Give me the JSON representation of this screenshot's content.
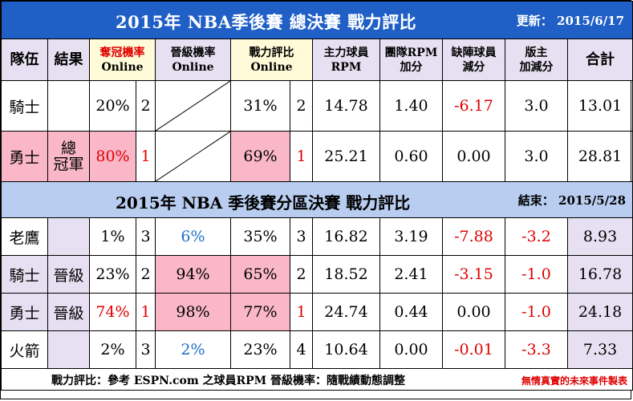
{
  "title1": {
    "text": "2015年 NBA季後賽  總決賽  戰力評比",
    "update_label": "更新：",
    "update_date": "2015/6/17"
  },
  "headers": {
    "team": "隊伍",
    "result": "結果",
    "champ_l1": "奪冠機率",
    "champ_l2": "Online",
    "adv_l1": "晉級機率",
    "adv_l2": "Online",
    "power_l1": "戰力評比",
    "power_l2": "Online",
    "main_l1": "主力球員",
    "main_l2": "RPM",
    "team_l1": "團隊RPM",
    "team_l2": "加分",
    "miss_l1": "缺陣球員",
    "miss_l2": "減分",
    "owner_l1": "版主",
    "owner_l2": "加減分",
    "total": "合計"
  },
  "finals": [
    {
      "team": "騎士",
      "result": "",
      "champ_pct": "20%",
      "champ_rank": "2",
      "power_pct": "31%",
      "power_rank": "2",
      "main_rpm": "14.78",
      "team_rpm": "1.40",
      "missing": "-6.17",
      "owner": "3.0",
      "total": "13.01"
    },
    {
      "team": "勇士",
      "result_l1": "總",
      "result_l2": "冠軍",
      "champ_pct": "80%",
      "champ_rank": "1",
      "power_pct": "69%",
      "power_rank": "1",
      "main_rpm": "25.21",
      "team_rpm": "0.60",
      "missing": "0.00",
      "owner": "3.0",
      "total": "28.81"
    }
  ],
  "title2": {
    "text": "2015年 NBA 季後賽分區決賽    戰力評比",
    "end_label": "結束：",
    "end_date": "2015/5/28"
  },
  "conf": [
    {
      "team": "老鷹",
      "result": "",
      "champ_pct": "1%",
      "champ_rank": "3",
      "adv_pct": "6%",
      "power_pct": "35%",
      "power_rank": "3",
      "main_rpm": "16.82",
      "team_rpm": "3.19",
      "missing": "-7.88",
      "owner": "-3.2",
      "total": "8.93"
    },
    {
      "team": "騎士",
      "result": "晉級",
      "champ_pct": "23%",
      "champ_rank": "2",
      "adv_pct": "94%",
      "power_pct": "65%",
      "power_rank": "2",
      "main_rpm": "18.52",
      "team_rpm": "2.41",
      "missing": "-3.15",
      "owner": "-1.0",
      "total": "16.78"
    },
    {
      "team": "勇士",
      "result": "晉級",
      "champ_pct": "74%",
      "champ_rank": "1",
      "adv_pct": "98%",
      "power_pct": "77%",
      "power_rank": "1",
      "main_rpm": "24.74",
      "team_rpm": "0.44",
      "missing": "0.00",
      "owner": "-1.0",
      "total": "24.18"
    },
    {
      "team": "火箭",
      "result": "",
      "champ_pct": "2%",
      "champ_rank": "3",
      "adv_pct": "2%",
      "power_pct": "23%",
      "power_rank": "4",
      "main_rpm": "10.64",
      "team_rpm": "0.00",
      "missing": "-0.01",
      "owner": "-3.3",
      "total": "7.33"
    }
  ],
  "footer": {
    "left": "戰力評比：參考 ESPN.com 之球員RPM      晉級機率：隨戰績動態調整",
    "right": "無情真實的未來事件製表"
  }
}
